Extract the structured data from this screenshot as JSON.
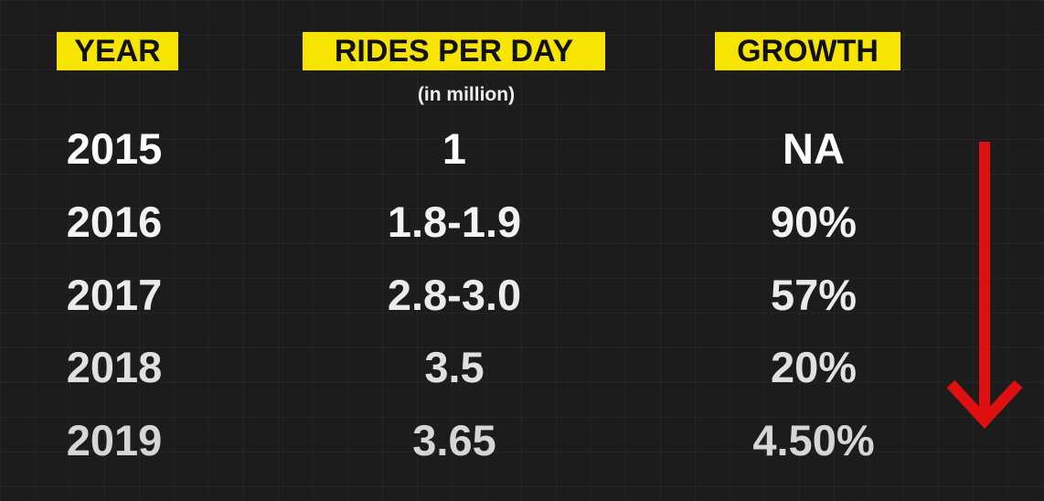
{
  "header": [
    "YEAR",
    "RIDES PER DAY",
    "GROWTH"
  ],
  "unit_note": "(in million)",
  "rows": [
    [
      "2015",
      "1",
      "NA"
    ],
    [
      "2016",
      "1.8-1.9",
      "90%"
    ],
    [
      "2017",
      "2.8-3.0",
      "57%"
    ],
    [
      "2018",
      "3.5",
      "20%"
    ],
    [
      "2019",
      "3.65",
      "4.50%"
    ]
  ]
}
